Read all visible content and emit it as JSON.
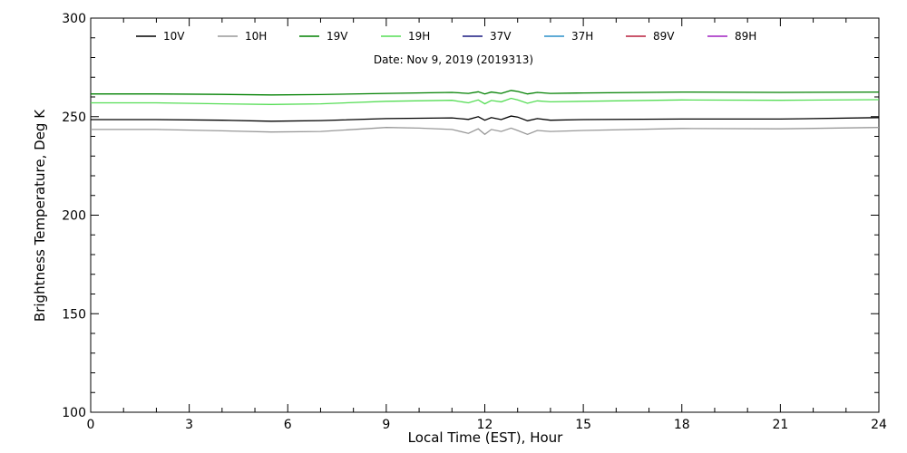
{
  "chart_data": {
    "type": "line",
    "title": "",
    "subtitle": "Date: Nov  9, 2019 (2019313)",
    "xlabel": "Local Time (EST), Hour",
    "ylabel": "Brightness Temperature, Deg  K",
    "xlim": [
      0,
      24
    ],
    "ylim": [
      100,
      300
    ],
    "xticks": [
      0,
      3,
      6,
      9,
      12,
      15,
      18,
      21,
      24
    ],
    "yticks": [
      100,
      150,
      200,
      250,
      300
    ],
    "grid": false,
    "legend_position": "top",
    "series": [
      {
        "name": "10V",
        "color": "#000000",
        "x": [
          0,
          2,
          4,
          5.5,
          7,
          9,
          11,
          11.5,
          11.8,
          12,
          12.2,
          12.5,
          12.8,
          13,
          13.3,
          13.6,
          14,
          15,
          18,
          21,
          24
        ],
        "y": [
          248.5,
          248.5,
          248.2,
          247.7,
          248.0,
          249.0,
          249.4,
          248.6,
          250.0,
          248.2,
          249.5,
          248.5,
          250.3,
          249.8,
          247.9,
          249.0,
          248.2,
          248.5,
          248.8,
          248.8,
          249.5
        ]
      },
      {
        "name": "10H",
        "color": "#999999",
        "x": [
          0,
          2,
          4,
          5.5,
          7,
          9,
          10,
          11,
          11.5,
          11.8,
          12,
          12.2,
          12.5,
          12.8,
          13,
          13.3,
          13.6,
          14,
          15,
          18,
          21,
          24
        ],
        "y": [
          243.5,
          243.5,
          242.8,
          242.2,
          242.5,
          244.5,
          244.2,
          243.5,
          241.5,
          243.8,
          241.0,
          243.5,
          242.5,
          244.2,
          243.0,
          241.0,
          243.0,
          242.5,
          243.0,
          244.0,
          243.8,
          244.5
        ]
      },
      {
        "name": "19V",
        "color": "#008000",
        "x": [
          0,
          2,
          4,
          5.5,
          7,
          9,
          11,
          11.5,
          11.8,
          12,
          12.2,
          12.5,
          12.8,
          13,
          13.3,
          13.6,
          14,
          15,
          18,
          21,
          24
        ],
        "y": [
          261.5,
          261.5,
          261.3,
          261.0,
          261.2,
          261.8,
          262.3,
          261.8,
          262.6,
          261.5,
          262.5,
          261.8,
          263.3,
          262.8,
          261.5,
          262.3,
          261.8,
          262.0,
          262.5,
          262.3,
          262.5
        ]
      },
      {
        "name": "19H",
        "color": "#55dd55",
        "x": [
          0,
          2,
          4,
          5.5,
          7,
          9,
          11,
          11.5,
          11.8,
          12,
          12.2,
          12.5,
          12.8,
          13,
          13.3,
          13.6,
          14,
          15,
          18,
          21,
          24
        ],
        "y": [
          257.0,
          257.0,
          256.5,
          256.2,
          256.5,
          257.8,
          258.3,
          257.0,
          258.5,
          256.5,
          258.2,
          257.5,
          259.3,
          258.5,
          256.8,
          258.0,
          257.5,
          257.8,
          258.5,
          258.3,
          258.6
        ]
      },
      {
        "name": "37V",
        "color": "#1a1a80",
        "x": [],
        "y": []
      },
      {
        "name": "37H",
        "color": "#2a8fc8",
        "x": [],
        "y": []
      },
      {
        "name": "89V",
        "color": "#b81e3c",
        "x": [],
        "y": []
      },
      {
        "name": "89H",
        "color": "#a020c0",
        "x": [],
        "y": []
      }
    ]
  }
}
